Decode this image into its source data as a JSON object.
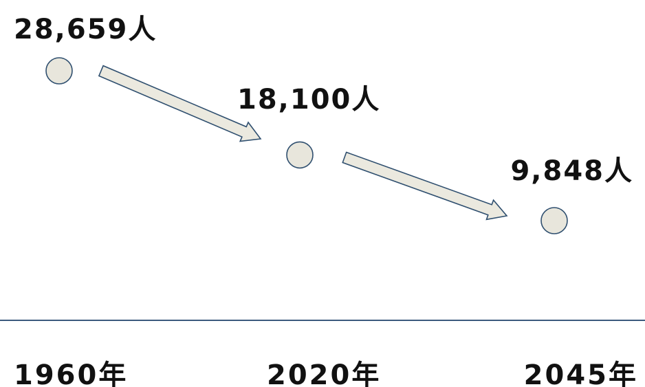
{
  "chart_data": {
    "type": "scatter",
    "title": "",
    "xlabel": "",
    "ylabel": "",
    "points": [
      {
        "x": "1960年",
        "value": 28659,
        "label": "28,659人"
      },
      {
        "x": "2020年",
        "value": 18100,
        "label": "18,100人"
      },
      {
        "x": "2045年",
        "value": 9848,
        "label": "9,848人"
      }
    ],
    "arrows": [
      {
        "from": "1960年",
        "to": "2020年"
      },
      {
        "from": "2020年",
        "to": "2045年"
      }
    ],
    "colors": {
      "marker_fill": "#e8e6dc",
      "marker_stroke": "#2f4f6f",
      "arrow_fill": "#ebe9df",
      "arrow_stroke": "#2f4f6f",
      "axis_line": "#3b5a7d"
    }
  }
}
